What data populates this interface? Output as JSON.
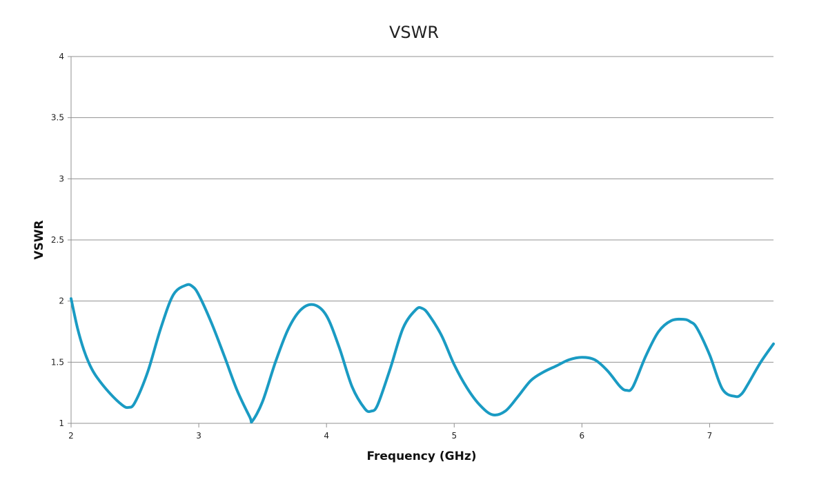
{
  "colors": {
    "series": "#1a9bc3",
    "grid": "#909090",
    "axis": "#909090",
    "background": "#ffffff"
  },
  "chart_data": {
    "type": "line",
    "title": "VSWR",
    "xlabel": "Frequency (GHz)",
    "ylabel": "VSWR",
    "xlim": [
      2,
      7.5
    ],
    "ylim": [
      1,
      4
    ],
    "x_ticks": [
      "2",
      "3",
      "4",
      "5",
      "6",
      "7"
    ],
    "y_ticks": [
      "1",
      "1.5",
      "2",
      "2.5",
      "3",
      "3.5",
      "4"
    ],
    "grid": "horizontal",
    "legend": "none",
    "series": [
      {
        "x": [
          2.0,
          2.05,
          2.1,
          2.15,
          2.2,
          2.3,
          2.4,
          2.45,
          2.5,
          2.6,
          2.7,
          2.8,
          2.9,
          2.95,
          3.0,
          3.1,
          3.2,
          3.3,
          3.4,
          3.42,
          3.5,
          3.6,
          3.7,
          3.8,
          3.9,
          4.0,
          4.1,
          4.2,
          4.3,
          4.35,
          4.4,
          4.5,
          4.6,
          4.7,
          4.75,
          4.8,
          4.9,
          5.0,
          5.1,
          5.2,
          5.3,
          5.4,
          5.5,
          5.6,
          5.7,
          5.8,
          5.9,
          6.0,
          6.1,
          6.2,
          6.3,
          6.35,
          6.4,
          6.5,
          6.6,
          6.7,
          6.8,
          6.85,
          6.9,
          7.0,
          7.1,
          7.2,
          7.25,
          7.3,
          7.4,
          7.5
        ],
        "y": [
          2.02,
          1.78,
          1.6,
          1.47,
          1.38,
          1.25,
          1.15,
          1.13,
          1.17,
          1.42,
          1.77,
          2.05,
          2.13,
          2.12,
          2.05,
          1.82,
          1.55,
          1.27,
          1.05,
          1.02,
          1.18,
          1.5,
          1.77,
          1.93,
          1.97,
          1.88,
          1.62,
          1.3,
          1.12,
          1.1,
          1.15,
          1.45,
          1.78,
          1.93,
          1.94,
          1.89,
          1.72,
          1.48,
          1.29,
          1.15,
          1.07,
          1.1,
          1.22,
          1.35,
          1.42,
          1.47,
          1.52,
          1.54,
          1.52,
          1.43,
          1.3,
          1.27,
          1.3,
          1.55,
          1.75,
          1.84,
          1.85,
          1.83,
          1.78,
          1.56,
          1.28,
          1.22,
          1.24,
          1.32,
          1.5,
          1.65
        ]
      }
    ]
  }
}
